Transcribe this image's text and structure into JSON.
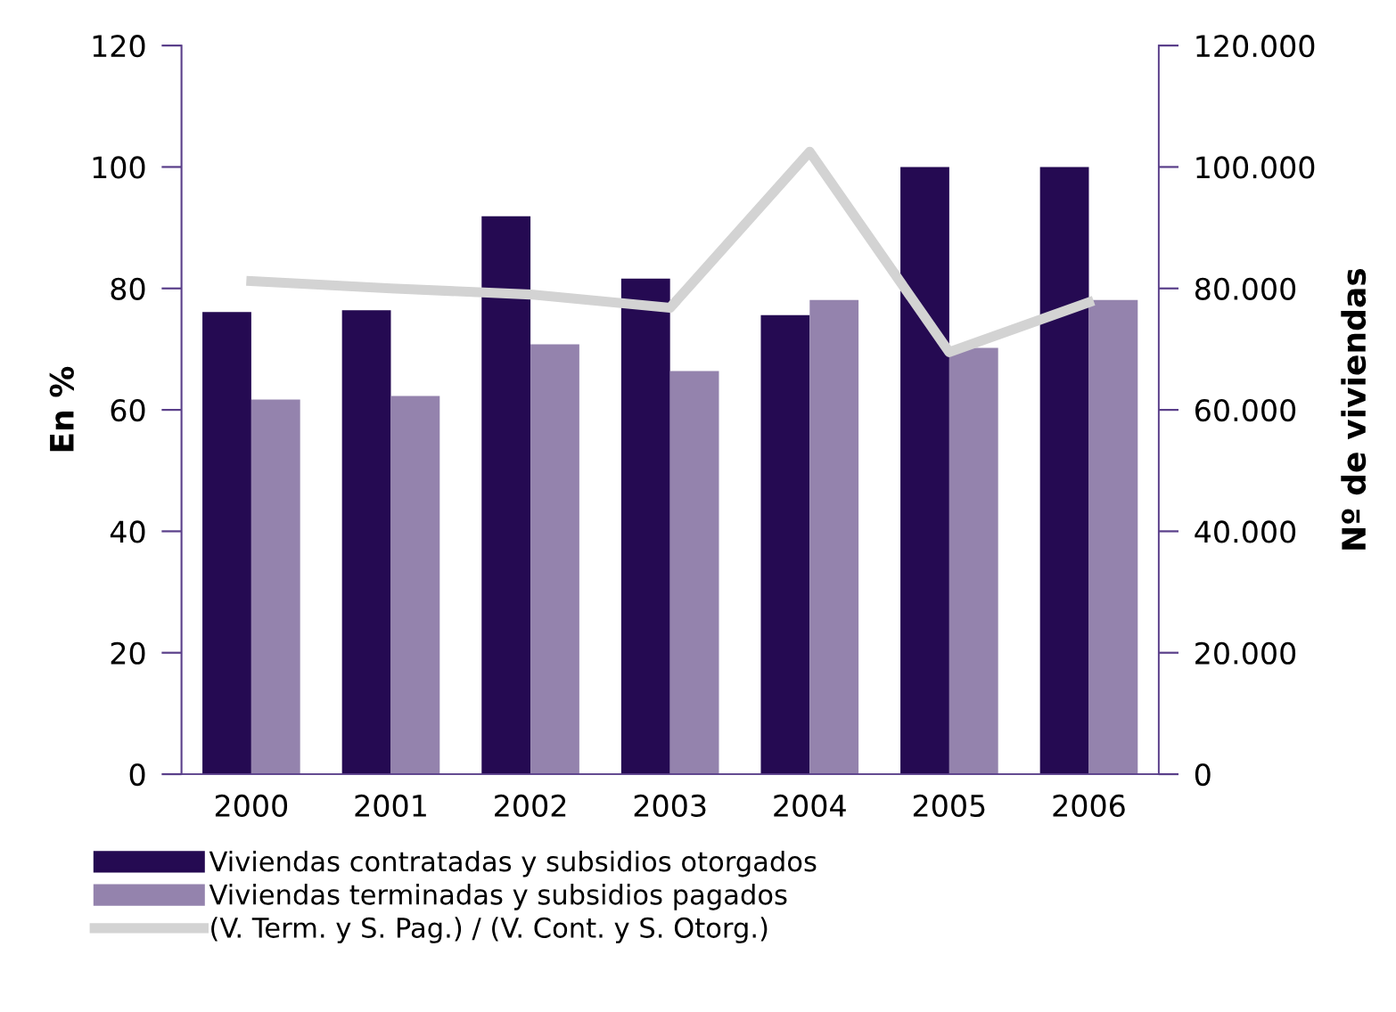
{
  "chart_data": {
    "type": "bar",
    "categories": [
      "2000",
      "2001",
      "2002",
      "2003",
      "2004",
      "2005",
      "2006"
    ],
    "ylabel": "En %",
    "y2label": "Nº de viviendas",
    "ylim": [
      0,
      120
    ],
    "yticks": [
      0,
      20,
      40,
      60,
      80,
      100,
      120
    ],
    "y2lim": [
      0,
      120000
    ],
    "y2ticks": [
      0,
      {
        "value": 20000,
        "label": "20.000"
      },
      {
        "value": 40000,
        "label": "40.000"
      },
      {
        "value": 60000,
        "label": "60.000"
      },
      {
        "value": 80000,
        "label": "80.000"
      },
      {
        "value": 100000,
        "label": "100.000"
      },
      {
        "value": 120000,
        "label": "120.000"
      }
    ],
    "grid": false,
    "legend": "bottom",
    "series": [
      {
        "name": "Viviendas contratadas y subsidios otorgados",
        "axis": "y2",
        "color": "#250a52",
        "values": [
          76100,
          76400,
          91900,
          81600,
          75600,
          100000,
          100000
        ]
      },
      {
        "name": "Viviendas terminadas y subsidios pagados",
        "axis": "y2",
        "color": "#9483ad",
        "values": [
          61700,
          62300,
          70800,
          66400,
          78100,
          70200,
          78100
        ]
      },
      {
        "name": "(V. Term. y S. Pag.) / (V. Cont. y S. Otorg.)",
        "type": "line",
        "axis": "y",
        "color": "#d3d3d3",
        "values": [
          81.2,
          80.0,
          79.0,
          76.8,
          102.5,
          69.5,
          77.7
        ]
      }
    ]
  }
}
